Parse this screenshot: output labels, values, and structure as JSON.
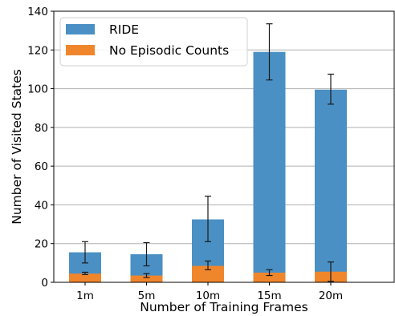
{
  "chart_data": {
    "type": "bar",
    "stacked": false,
    "overlaid": true,
    "categories": [
      "1m",
      "5m",
      "10m",
      "15m",
      "20m"
    ],
    "series": [
      {
        "name": "RIDE",
        "color": "#4a90c4",
        "values": [
          15.5,
          14.5,
          32.5,
          119,
          99.5
        ],
        "error_low": [
          10,
          8.5,
          21,
          104.5,
          92
        ],
        "error_high": [
          21,
          20.5,
          44.5,
          133.5,
          107.5
        ]
      },
      {
        "name": "No Episodic Counts",
        "color": "#f0862c",
        "values": [
          4.5,
          3.5,
          8.5,
          5,
          5.5
        ],
        "error_low": [
          4,
          2.5,
          6.5,
          3.5,
          0.5
        ],
        "error_high": [
          5.2,
          4.5,
          11,
          6.5,
          10.5
        ]
      }
    ],
    "xlabel": "Number of Training Frames",
    "ylabel": "Number of Visited States",
    "ylim": [
      0,
      140
    ],
    "yticks": [
      0,
      20,
      40,
      60,
      80,
      100,
      120,
      140
    ],
    "grid": "y",
    "legend_position": "top-left"
  }
}
